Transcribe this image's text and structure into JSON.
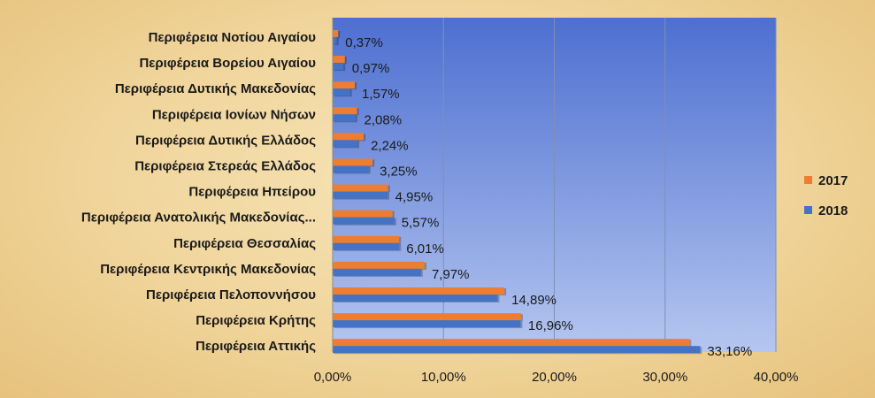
{
  "chart_data": {
    "type": "bar",
    "orientation": "horizontal",
    "categories": [
      "Περιφέρεια Νοτίου Αιγαίου",
      "Περιφέρεια Βορείου Αιγαίου",
      "Περιφέρεια Δυτικής Μακεδονίας",
      "Περιφέρεια Ιονίων Νήσων",
      "Περιφέρεια Δυτικής Ελλάδος",
      "Περιφέρεια Στερεάς Ελλάδος",
      "Περιφέρεια Ηπείρου",
      "Περιφέρεια Ανατολικής Μακεδονίας...",
      "Περιφέρεια Θεσσαλίας",
      "Περιφέρεια Κεντρικής Μακεδονίας",
      "Περιφέρεια Πελοποννήσου",
      "Περιφέρεια Κρήτης",
      "Περιφέρεια Αττικής"
    ],
    "series": [
      {
        "name": "2017",
        "color": "#ed7d31",
        "values": [
          0.5,
          1.1,
          2.0,
          2.2,
          2.8,
          3.6,
          5.0,
          5.4,
          6.0,
          8.3,
          15.5,
          17.0,
          32.2
        ]
      },
      {
        "name": "2018",
        "color": "#4472c4",
        "values": [
          0.37,
          0.97,
          1.57,
          2.08,
          2.24,
          3.25,
          4.95,
          5.57,
          6.01,
          7.97,
          14.89,
          16.96,
          33.16
        ]
      }
    ],
    "data_labels": [
      "0,37%",
      "0,97%",
      "1,57%",
      "2,08%",
      "2,24%",
      "3,25%",
      "4,95%",
      "5,57%",
      "6,01%",
      "7,97%",
      "14,89%",
      "16,96%",
      "33,16%"
    ],
    "xlim": [
      0,
      40
    ],
    "x_ticks": [
      0,
      10,
      20,
      30,
      40
    ],
    "x_tick_labels": [
      "0,00%",
      "10,00%",
      "20,00%",
      "30,00%",
      "40,00%"
    ],
    "grid": "vertical",
    "legend_position": "right",
    "plot_background": [
      "#4d6fd0",
      "#b5c6f0"
    ]
  }
}
